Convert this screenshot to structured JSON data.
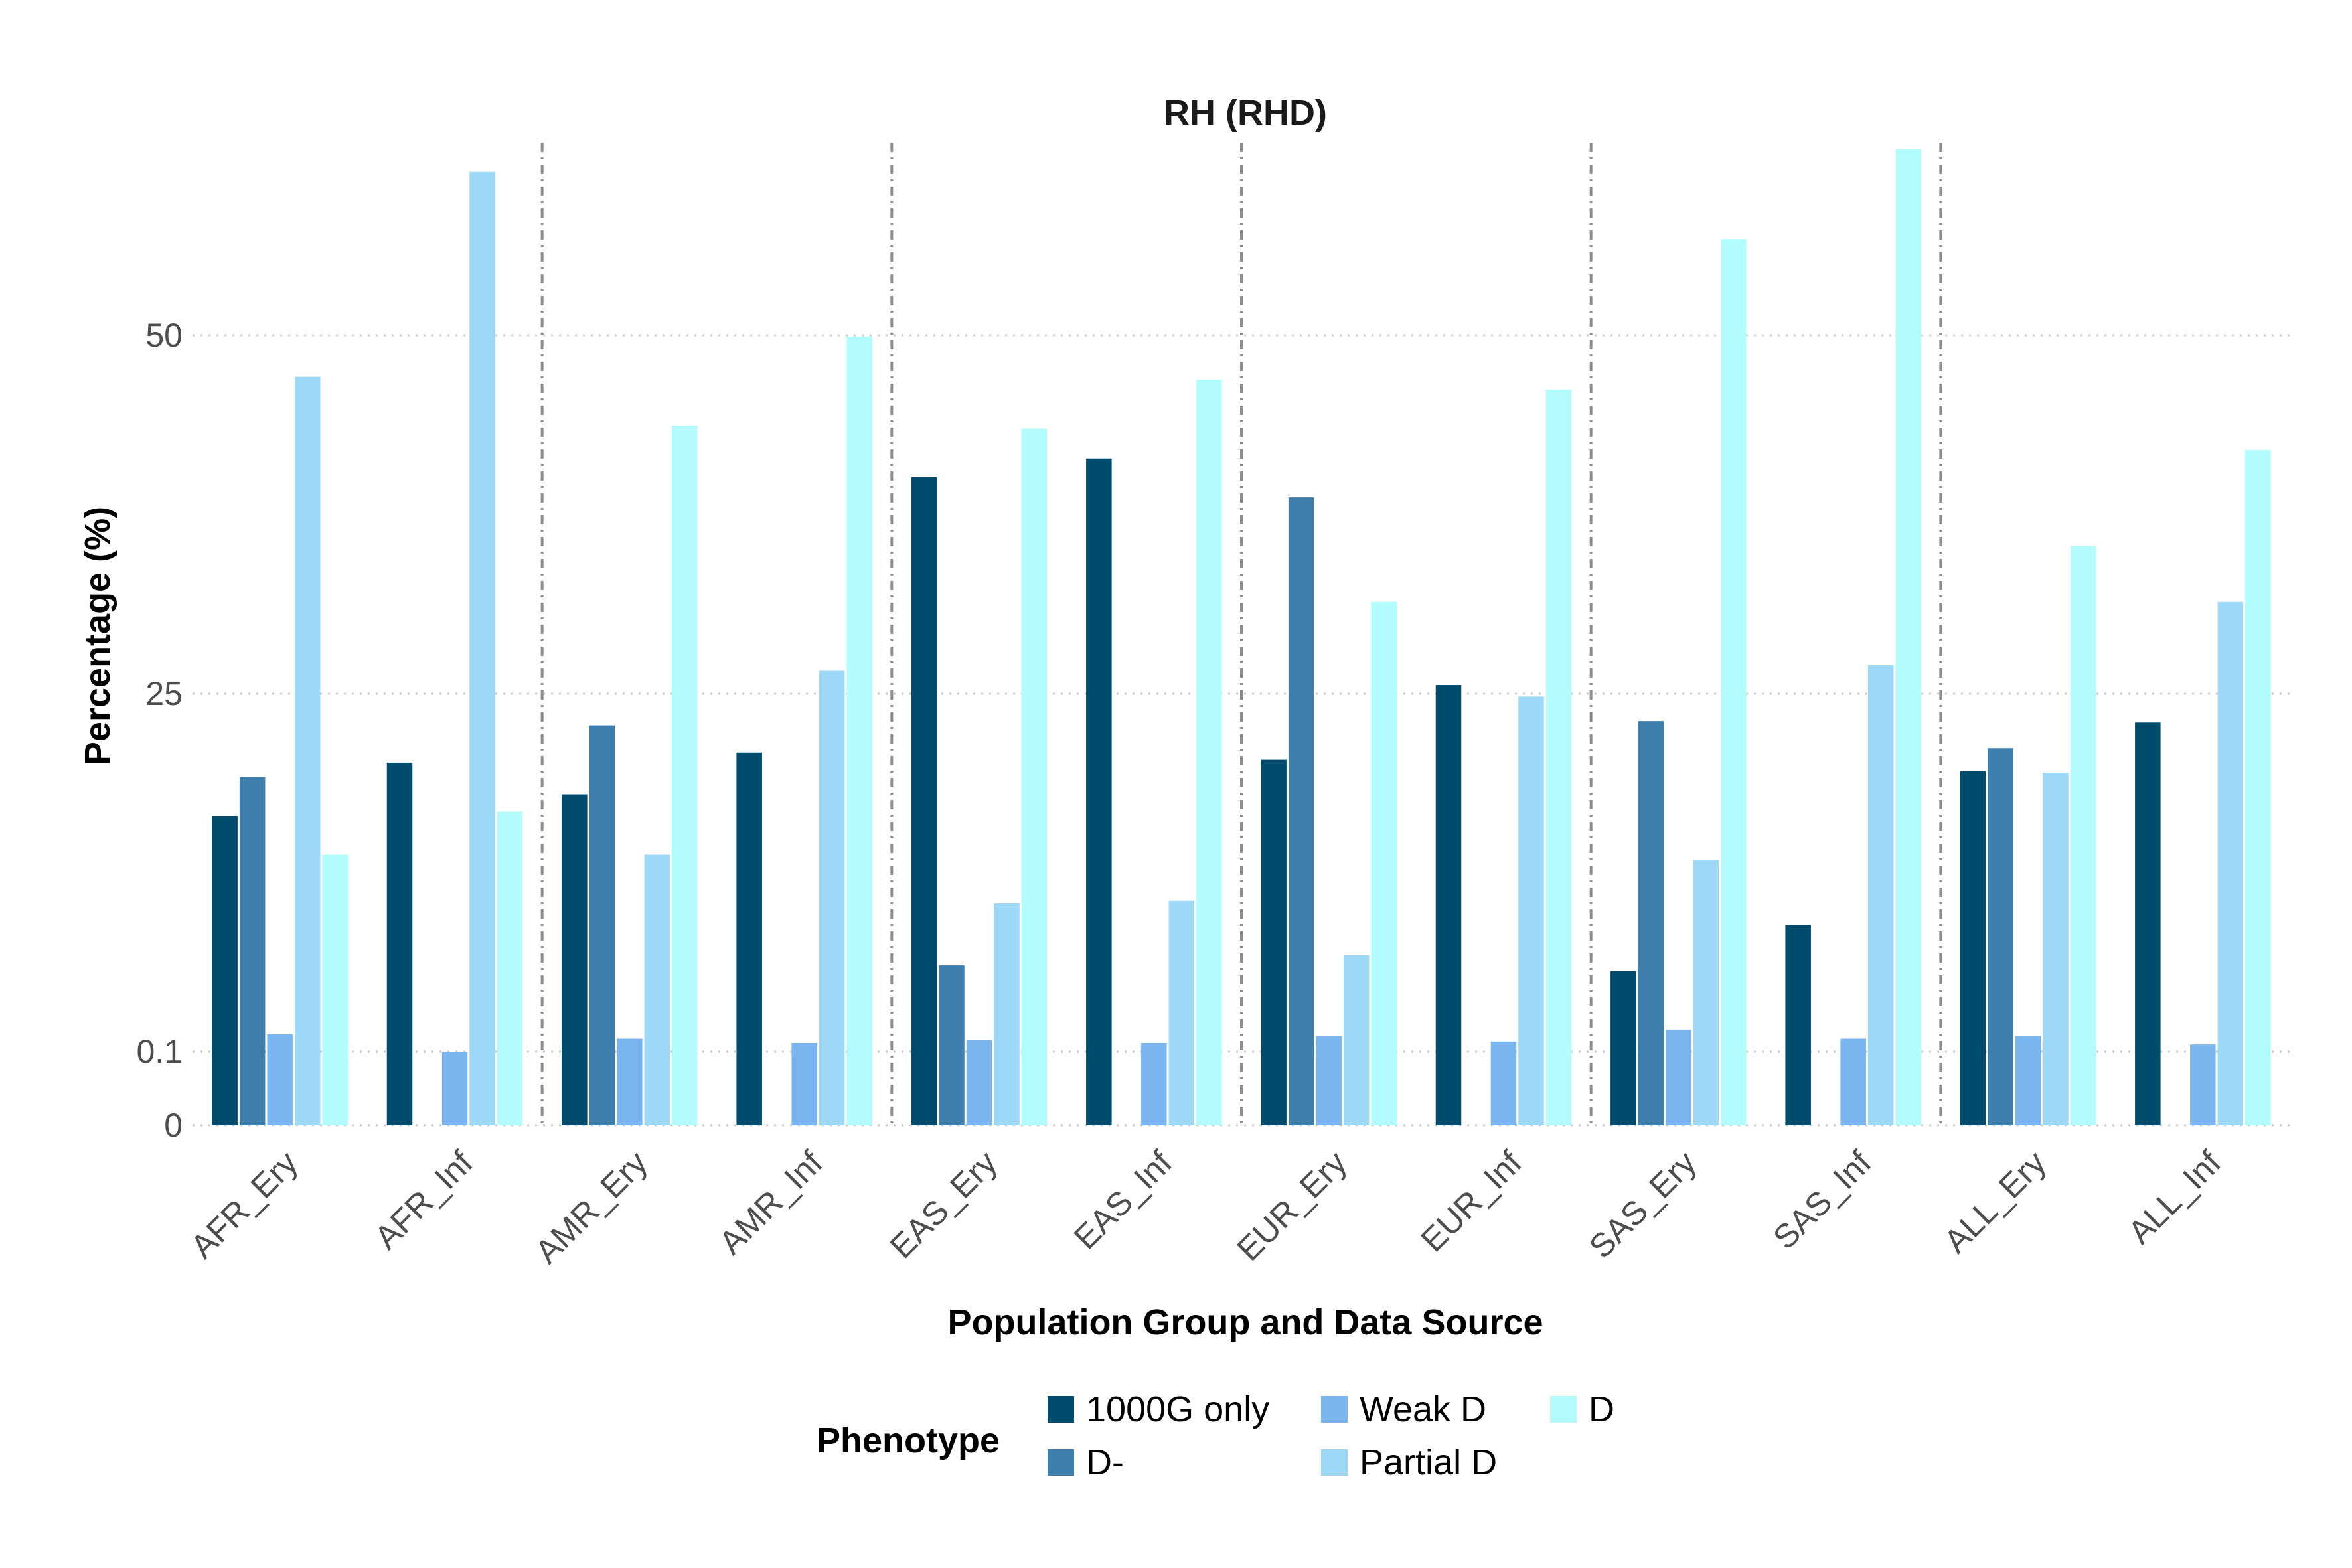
{
  "chart_data": {
    "type": "bar",
    "title": "RH (RHD)",
    "xlabel": "Population Group and Data Source",
    "ylabel": "Percentage (%)",
    "categories": [
      "AFR_Ery",
      "AFR_Inf",
      "AMR_Ery",
      "AMR_Inf",
      "EAS_Ery",
      "EAS_Inf",
      "EUR_Ery",
      "EUR_Inf",
      "SAS_Ery",
      "SAS_Inf",
      "ALL_Ery",
      "ALL_Inf"
    ],
    "y_ticks": [
      {
        "label": "0",
        "value": 0
      },
      {
        "label": "0.1",
        "value": 0.1
      },
      {
        "label": "25",
        "value": 25
      },
      {
        "label": "50",
        "value": 50
      }
    ],
    "y_scale": "nonlinear (0 to 0.1 expanded, then linear)",
    "grid": true,
    "legend": {
      "title": "Phenotype",
      "position": "bottom",
      "items": [
        "1000G only",
        "D-",
        "Weak D",
        "Partial D",
        "D"
      ]
    },
    "series": [
      {
        "name": "1000G only",
        "color": "#004c6d",
        "values": [
          16.5,
          20.2,
          18.0,
          20.9,
          40.1,
          41.4,
          20.4,
          25.6,
          5.7,
          8.9,
          19.6,
          23.0
        ]
      },
      {
        "name": "D-",
        "color": "#3e7fae",
        "values": [
          19.2,
          null,
          22.8,
          null,
          6.1,
          null,
          38.7,
          null,
          23.1,
          null,
          21.2,
          null
        ]
      },
      {
        "name": "Weak D",
        "color": "#7bb5ef",
        "values": [
          1.3,
          0.1,
          1.0,
          0.7,
          0.9,
          0.7,
          1.2,
          0.8,
          1.6,
          1.0,
          1.2,
          0.6
        ]
      },
      {
        "name": "Partial D",
        "color": "#9dd9f7",
        "values": [
          47.1,
          61.4,
          13.8,
          26.6,
          10.4,
          10.6,
          6.8,
          24.8,
          13.4,
          27.0,
          19.5,
          31.4
        ]
      },
      {
        "name": "D",
        "color": "#b3fcfd",
        "values": [
          13.8,
          16.8,
          43.7,
          49.9,
          43.5,
          46.9,
          31.4,
          46.2,
          56.7,
          63.0,
          35.3,
          42.0
        ]
      }
    ],
    "group_separators_after": [
      "AFR_Inf",
      "AMR_Inf",
      "EAS_Inf",
      "EUR_Inf",
      "SAS_Inf"
    ]
  }
}
